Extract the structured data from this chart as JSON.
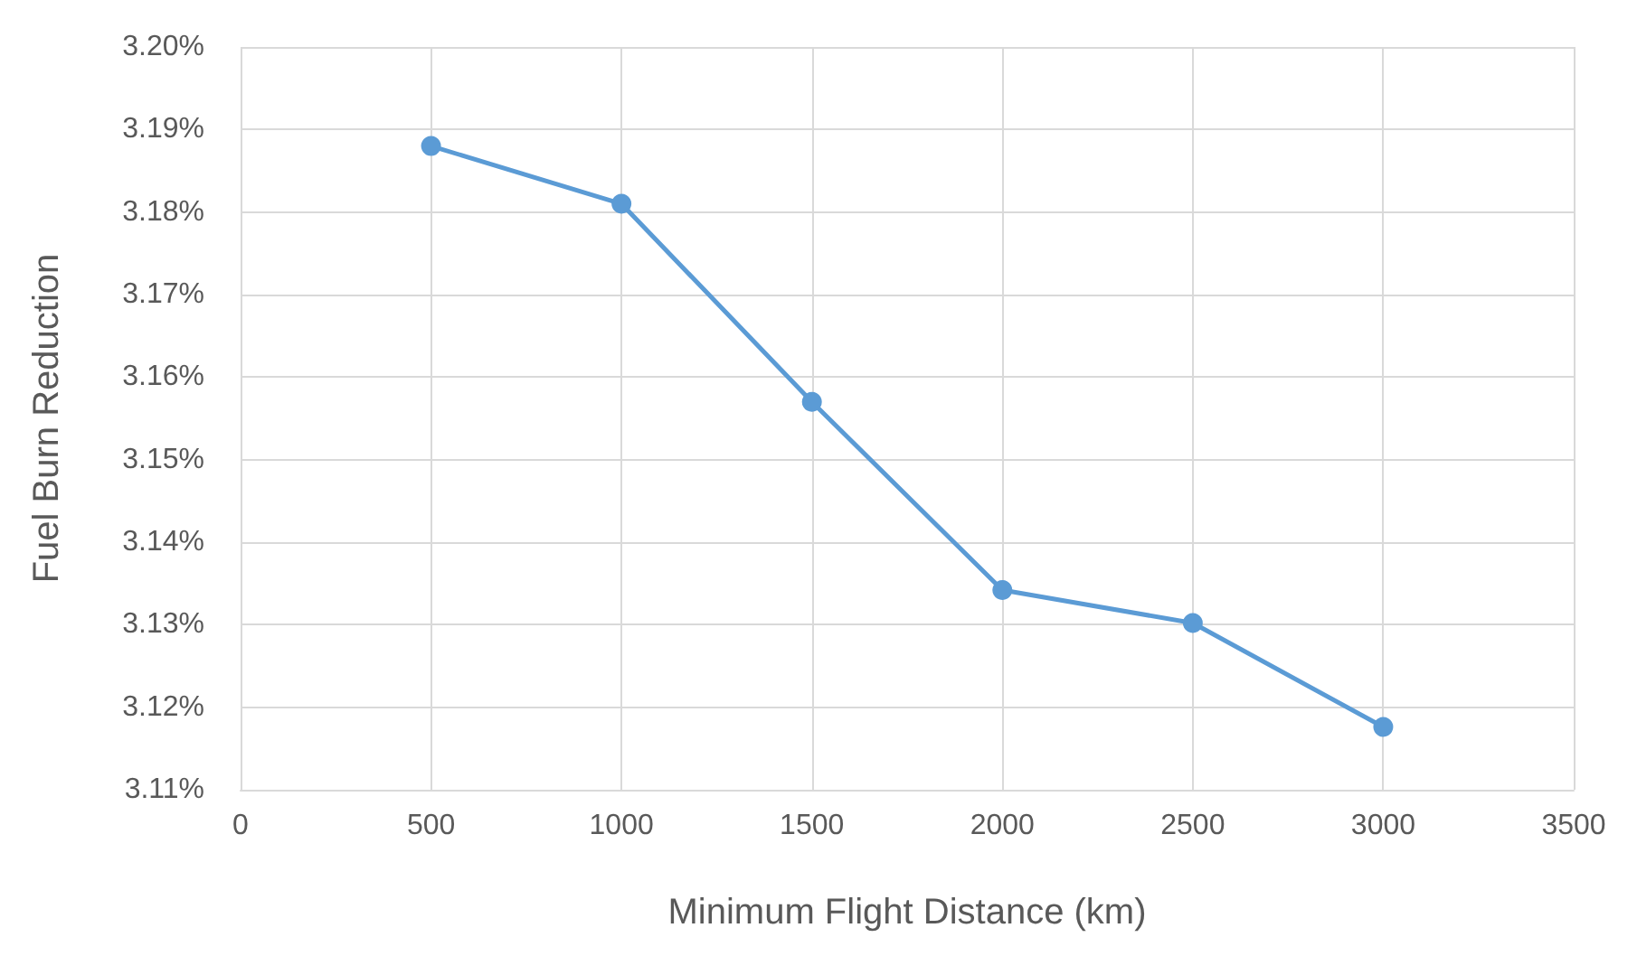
{
  "chart_data": {
    "type": "line",
    "xlabel": "Minimum Flight Distance (km)",
    "ylabel": "Fuel Burn Reduction",
    "x": [
      500,
      1000,
      1500,
      2000,
      2500,
      3000
    ],
    "series": [
      {
        "color": "#5b9bd5",
        "values": [
          3.188,
          3.181,
          3.157,
          3.1342,
          3.1302,
          3.1176
        ]
      }
    ],
    "xlim": [
      0,
      3500
    ],
    "xticks": [
      0,
      500,
      1000,
      1500,
      2000,
      2500,
      3000,
      3500
    ],
    "ylim": [
      3.11,
      3.2
    ],
    "yticks": [
      {
        "value": 3.11,
        "label": "3.11%"
      },
      {
        "value": 3.12,
        "label": "3.12%"
      },
      {
        "value": 3.13,
        "label": "3.13%"
      },
      {
        "value": 3.14,
        "label": "3.14%"
      },
      {
        "value": 3.15,
        "label": "3.15%"
      },
      {
        "value": 3.16,
        "label": "3.16%"
      },
      {
        "value": 3.17,
        "label": "3.17%"
      },
      {
        "value": 3.18,
        "label": "3.18%"
      },
      {
        "value": 3.19,
        "label": "3.19%"
      },
      {
        "value": 3.2,
        "label": "3.20%"
      }
    ],
    "grid": true,
    "marker": "circle",
    "line_style": "solid"
  }
}
